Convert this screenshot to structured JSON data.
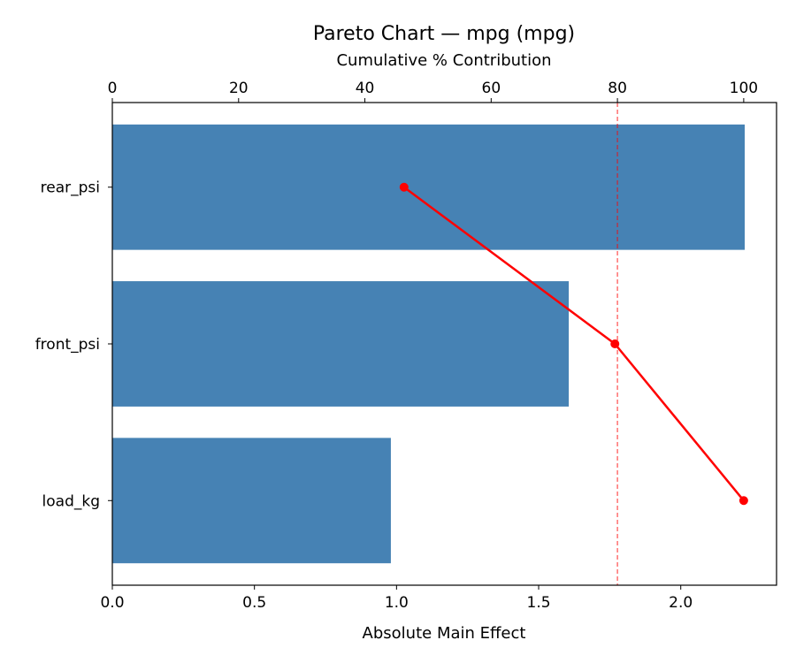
{
  "chart_data": {
    "type": "bar",
    "orientation": "horizontal",
    "title": "Pareto Chart — mpg (mpg)",
    "xlabel": "Absolute Main Effect",
    "x2label": "Cumulative % Contribution",
    "categories": [
      "rear_psi",
      "front_psi",
      "load_kg"
    ],
    "values": [
      2.225,
      1.606,
      0.98
    ],
    "bar_color": "#4682b4",
    "xlim": [
      0,
      2.337
    ],
    "xticks": [
      "0.0",
      "0.5",
      "1.0",
      "1.5",
      "2.0"
    ],
    "x2lim": [
      0,
      105.2
    ],
    "x2ticks": [
      "0",
      "20",
      "40",
      "60",
      "80",
      "100"
    ],
    "cumulative": {
      "values": [
        46.2,
        79.6,
        100.0
      ],
      "color": "#ff0000"
    },
    "threshold": {
      "value": 80,
      "style": "dashed",
      "color": "#ff0000"
    },
    "grid": false
  }
}
